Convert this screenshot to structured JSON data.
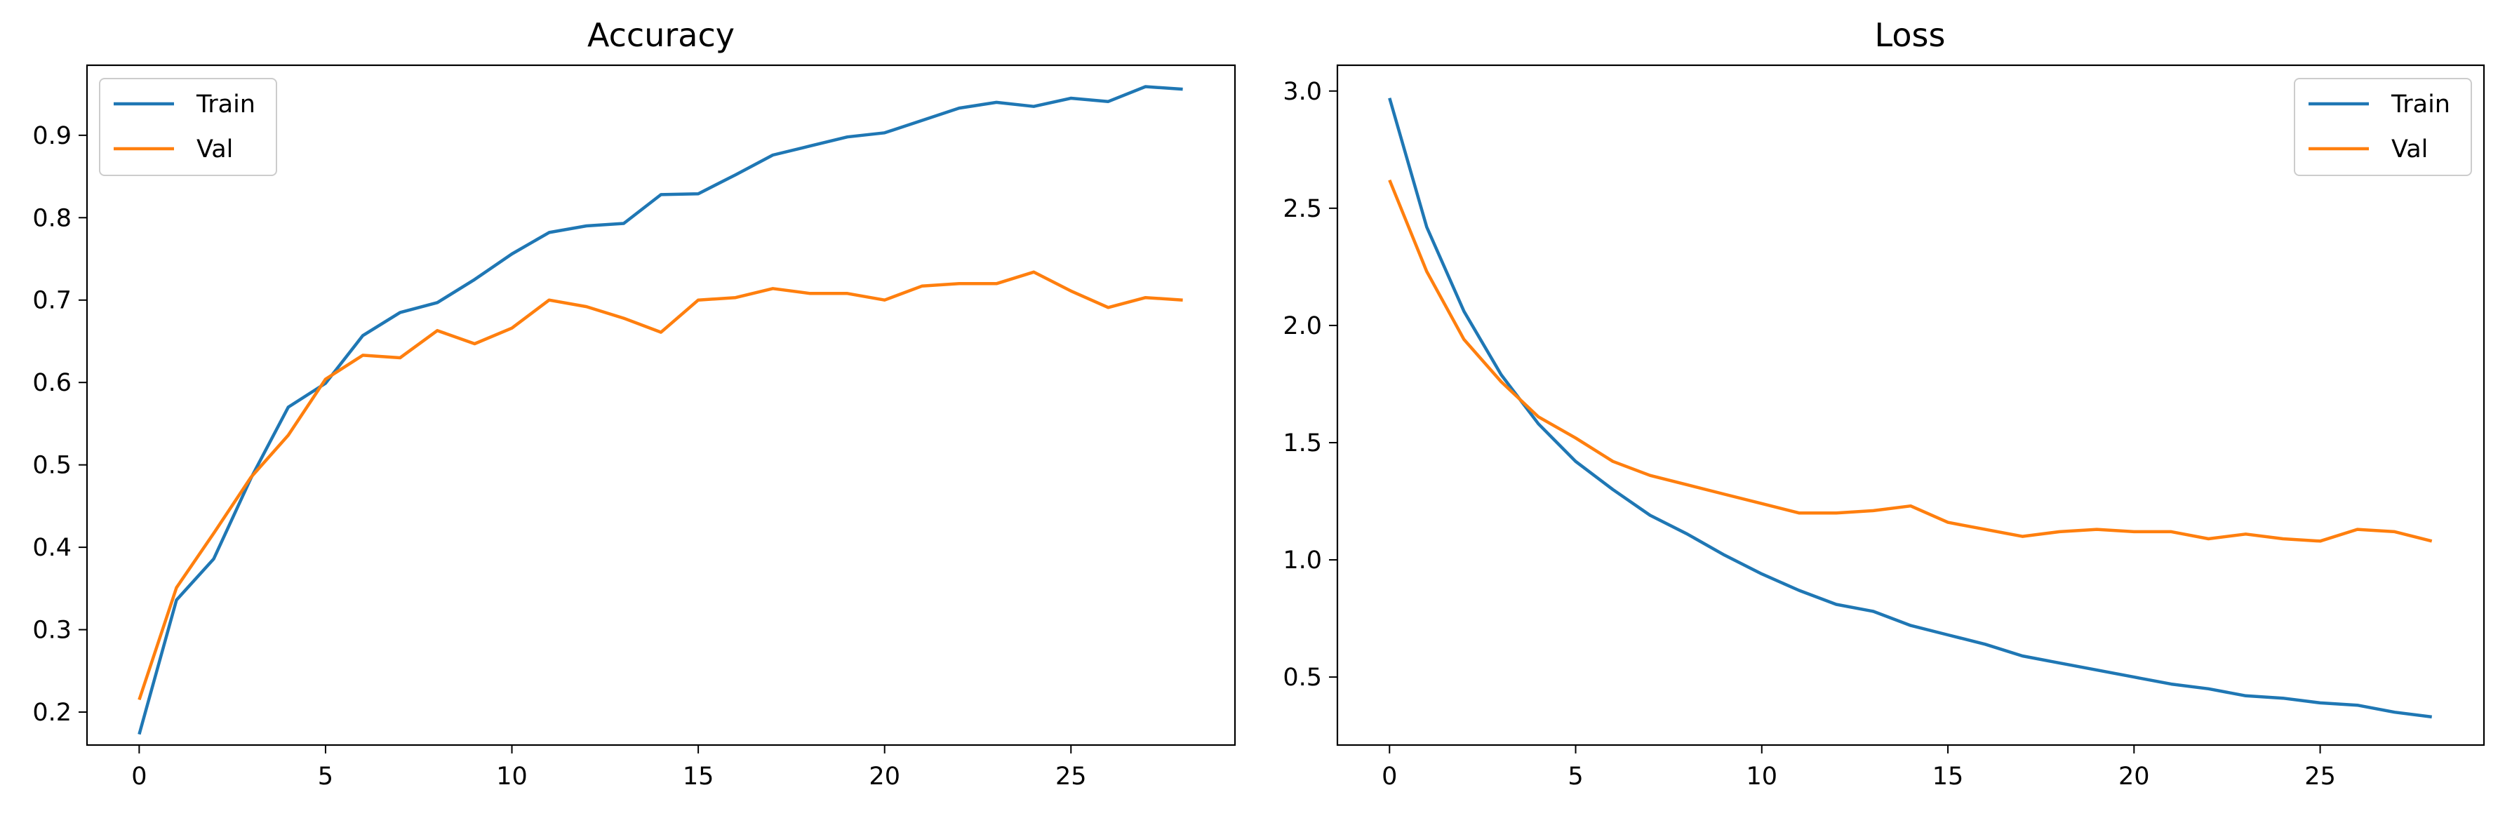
{
  "chart_data": [
    {
      "type": "line",
      "title": "Accuracy",
      "xlabel": "",
      "ylabel": "",
      "x": [
        0,
        1,
        2,
        3,
        4,
        5,
        6,
        7,
        8,
        9,
        10,
        11,
        12,
        13,
        14,
        15,
        16,
        17,
        18,
        19,
        20,
        21,
        22,
        23,
        24,
        25,
        26,
        27,
        28
      ],
      "xlim": [
        -1.4,
        29.4
      ],
      "ylim": [
        0.16,
        0.985
      ],
      "xticks": [
        0,
        5,
        10,
        15,
        20,
        25
      ],
      "yticks": [
        0.2,
        0.3,
        0.4,
        0.5,
        0.6,
        0.7,
        0.8,
        0.9
      ],
      "legend_position": "upper-left",
      "grid": false,
      "series": [
        {
          "name": "Train",
          "color": "#1f77b4",
          "values": [
            0.173,
            0.336,
            0.386,
            0.484,
            0.57,
            0.599,
            0.657,
            0.685,
            0.697,
            0.725,
            0.756,
            0.782,
            0.79,
            0.793,
            0.828,
            0.829,
            0.852,
            0.876,
            0.887,
            0.898,
            0.903,
            0.918,
            0.933,
            0.94,
            0.935,
            0.945,
            0.941,
            0.959,
            0.956
          ]
        },
        {
          "name": "Val",
          "color": "#ff7f0e",
          "values": [
            0.215,
            0.351,
            0.417,
            0.485,
            0.536,
            0.604,
            0.633,
            0.63,
            0.663,
            0.647,
            0.666,
            0.7,
            0.692,
            0.678,
            0.661,
            0.7,
            0.703,
            0.714,
            0.708,
            0.708,
            0.7,
            0.717,
            0.72,
            0.72,
            0.734,
            0.711,
            0.691,
            0.703,
            0.7
          ]
        }
      ]
    },
    {
      "type": "line",
      "title": "Loss",
      "xlabel": "",
      "ylabel": "",
      "x": [
        0,
        1,
        2,
        3,
        4,
        5,
        6,
        7,
        8,
        9,
        10,
        11,
        12,
        13,
        14,
        15,
        16,
        17,
        18,
        19,
        20,
        21,
        22,
        23,
        24,
        25,
        26,
        27,
        28
      ],
      "xlim": [
        -1.4,
        29.4
      ],
      "ylim": [
        0.21,
        3.11
      ],
      "xticks": [
        0,
        5,
        10,
        15,
        20,
        25
      ],
      "yticks": [
        0.5,
        1.0,
        1.5,
        2.0,
        2.5,
        3.0
      ],
      "legend_position": "upper-right",
      "grid": false,
      "series": [
        {
          "name": "Train",
          "color": "#1f77b4",
          "values": [
            2.97,
            2.42,
            2.06,
            1.79,
            1.58,
            1.42,
            1.3,
            1.19,
            1.11,
            1.02,
            0.94,
            0.87,
            0.81,
            0.78,
            0.72,
            0.68,
            0.64,
            0.59,
            0.56,
            0.53,
            0.5,
            0.47,
            0.45,
            0.42,
            0.41,
            0.39,
            0.38,
            0.35,
            0.33
          ]
        },
        {
          "name": "Val",
          "color": "#ff7f0e",
          "values": [
            2.62,
            2.23,
            1.94,
            1.76,
            1.61,
            1.52,
            1.42,
            1.36,
            1.32,
            1.28,
            1.24,
            1.2,
            1.2,
            1.21,
            1.23,
            1.16,
            1.13,
            1.1,
            1.12,
            1.13,
            1.12,
            1.12,
            1.09,
            1.11,
            1.09,
            1.08,
            1.13,
            1.12,
            1.08
          ]
        }
      ]
    }
  ]
}
